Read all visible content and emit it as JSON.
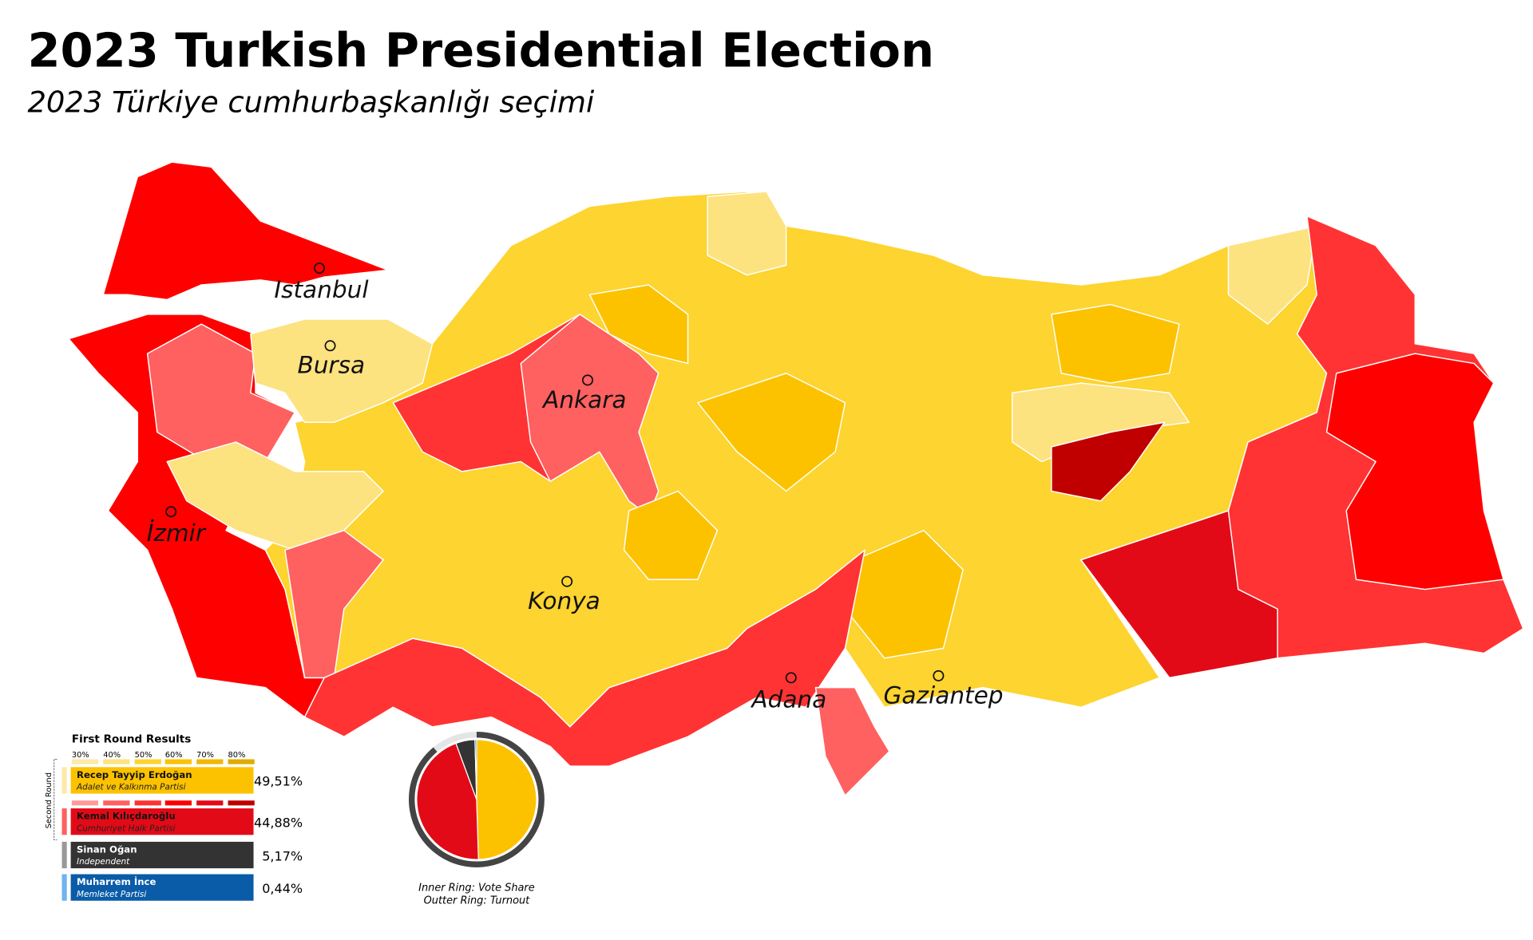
{
  "title": "2023 Turkish Presidential Election",
  "subtitle": "2023 Türkiye cumhurbaşkanlığı seçimi",
  "cities": [
    "Istanbul",
    "Bursa",
    "Ankara",
    "İzmir",
    "Konya",
    "Adana",
    "Gaziantep"
  ],
  "legend": {
    "title": "First Round Results",
    "scale": [
      "30%",
      "40%",
      "50%",
      "60%",
      "70%",
      "80%"
    ],
    "second_round_label": "Second Round"
  },
  "chart_data": {
    "type": "pie",
    "categories": [
      "Recep Tayyip Erdoğan",
      "Kemal Kılıçdaroğlu",
      "Sinan Oğan",
      "Muharrem İnce"
    ],
    "parties": [
      "Adalet ve Kalkınma Partisi",
      "Cumhuriyet Halk Partisi",
      "Independent",
      "Memleket Partisi"
    ],
    "values": [
      49.51,
      44.88,
      5.17,
      0.44
    ],
    "value_labels": [
      "49,51%",
      "44,88%",
      "5,17%",
      "0,44%"
    ],
    "colors": [
      "#fcc200",
      "#e30a17",
      "#333333",
      "#0a5ca8"
    ],
    "turnout": 89,
    "annotations": [
      "Inner Ring: Vote Share",
      "Outter Ring: Turnout"
    ]
  }
}
